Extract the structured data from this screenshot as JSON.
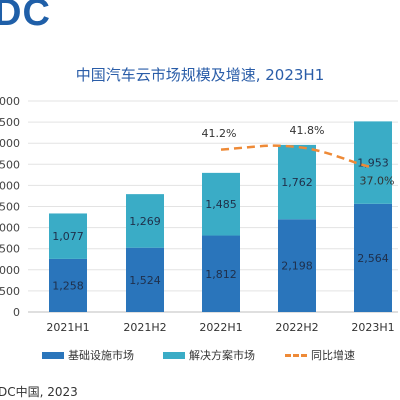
{
  "logo_text": "DC",
  "source": "DC中国, 2023",
  "colors": {
    "infrastructure": "#2a75bb",
    "solutions": "#3aacc6",
    "growth": "#ee8a37",
    "title": "#2a5da8"
  },
  "chart_data": {
    "type": "bar",
    "stacked": true,
    "title": "中国汽车云市场规模及增速, 2023H1",
    "categories": [
      "2021H1",
      "2021H2",
      "2022H1",
      "2022H2",
      "2023H1"
    ],
    "y_tick_labels": [
      "000",
      "500",
      "000",
      "500",
      "000",
      "500",
      "000",
      "500",
      "000",
      "500",
      "0"
    ],
    "ylim": [
      0,
      5000
    ],
    "grid": true,
    "legend_position": "bottom",
    "series": [
      {
        "name": "基础设施市场",
        "values": [
          1258,
          1524,
          1812,
          2198,
          2564
        ],
        "labels": [
          "1,258",
          "1,524",
          "1,812",
          "2,198",
          "2,564"
        ]
      },
      {
        "name": "解决方案市场",
        "values": [
          1077,
          1269,
          1485,
          1762,
          1953
        ],
        "labels": [
          "1,077",
          "1,269",
          "1,485",
          "1,762",
          "1,953"
        ]
      }
    ],
    "growth_line": {
      "name": "同比增速",
      "categories": [
        "2022H1",
        "2022H2",
        "2023H1"
      ],
      "values": [
        41.2,
        41.8,
        37.0
      ],
      "labels": [
        "41.2%",
        "41.8%",
        "37.0%"
      ]
    }
  }
}
